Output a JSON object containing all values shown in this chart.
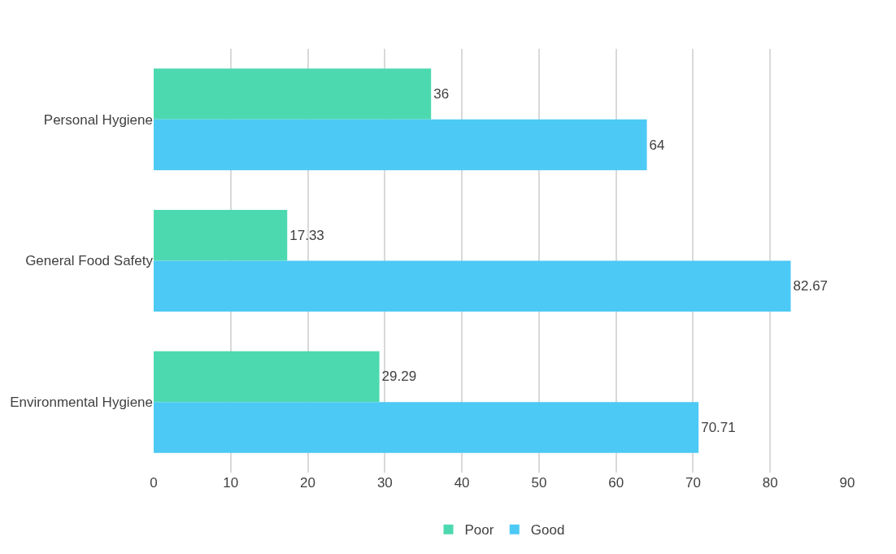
{
  "chart_data": {
    "type": "bar",
    "orientation": "horizontal",
    "categories": [
      "Personal Hygiene",
      "General Food Safety",
      "Environmental Hygiene"
    ],
    "series": [
      {
        "name": "Poor",
        "color": "#4dd9b0",
        "values": [
          36,
          17.33,
          29.29
        ]
      },
      {
        "name": "Good",
        "color": "#4cc9f5",
        "values": [
          64,
          82.67,
          70.71
        ]
      }
    ],
    "xlim": [
      0,
      90
    ],
    "xticks": [
      0,
      10,
      20,
      30,
      40,
      50,
      60,
      70,
      80,
      90
    ],
    "grid": "x",
    "legend": "bottom",
    "data_labels": true
  }
}
